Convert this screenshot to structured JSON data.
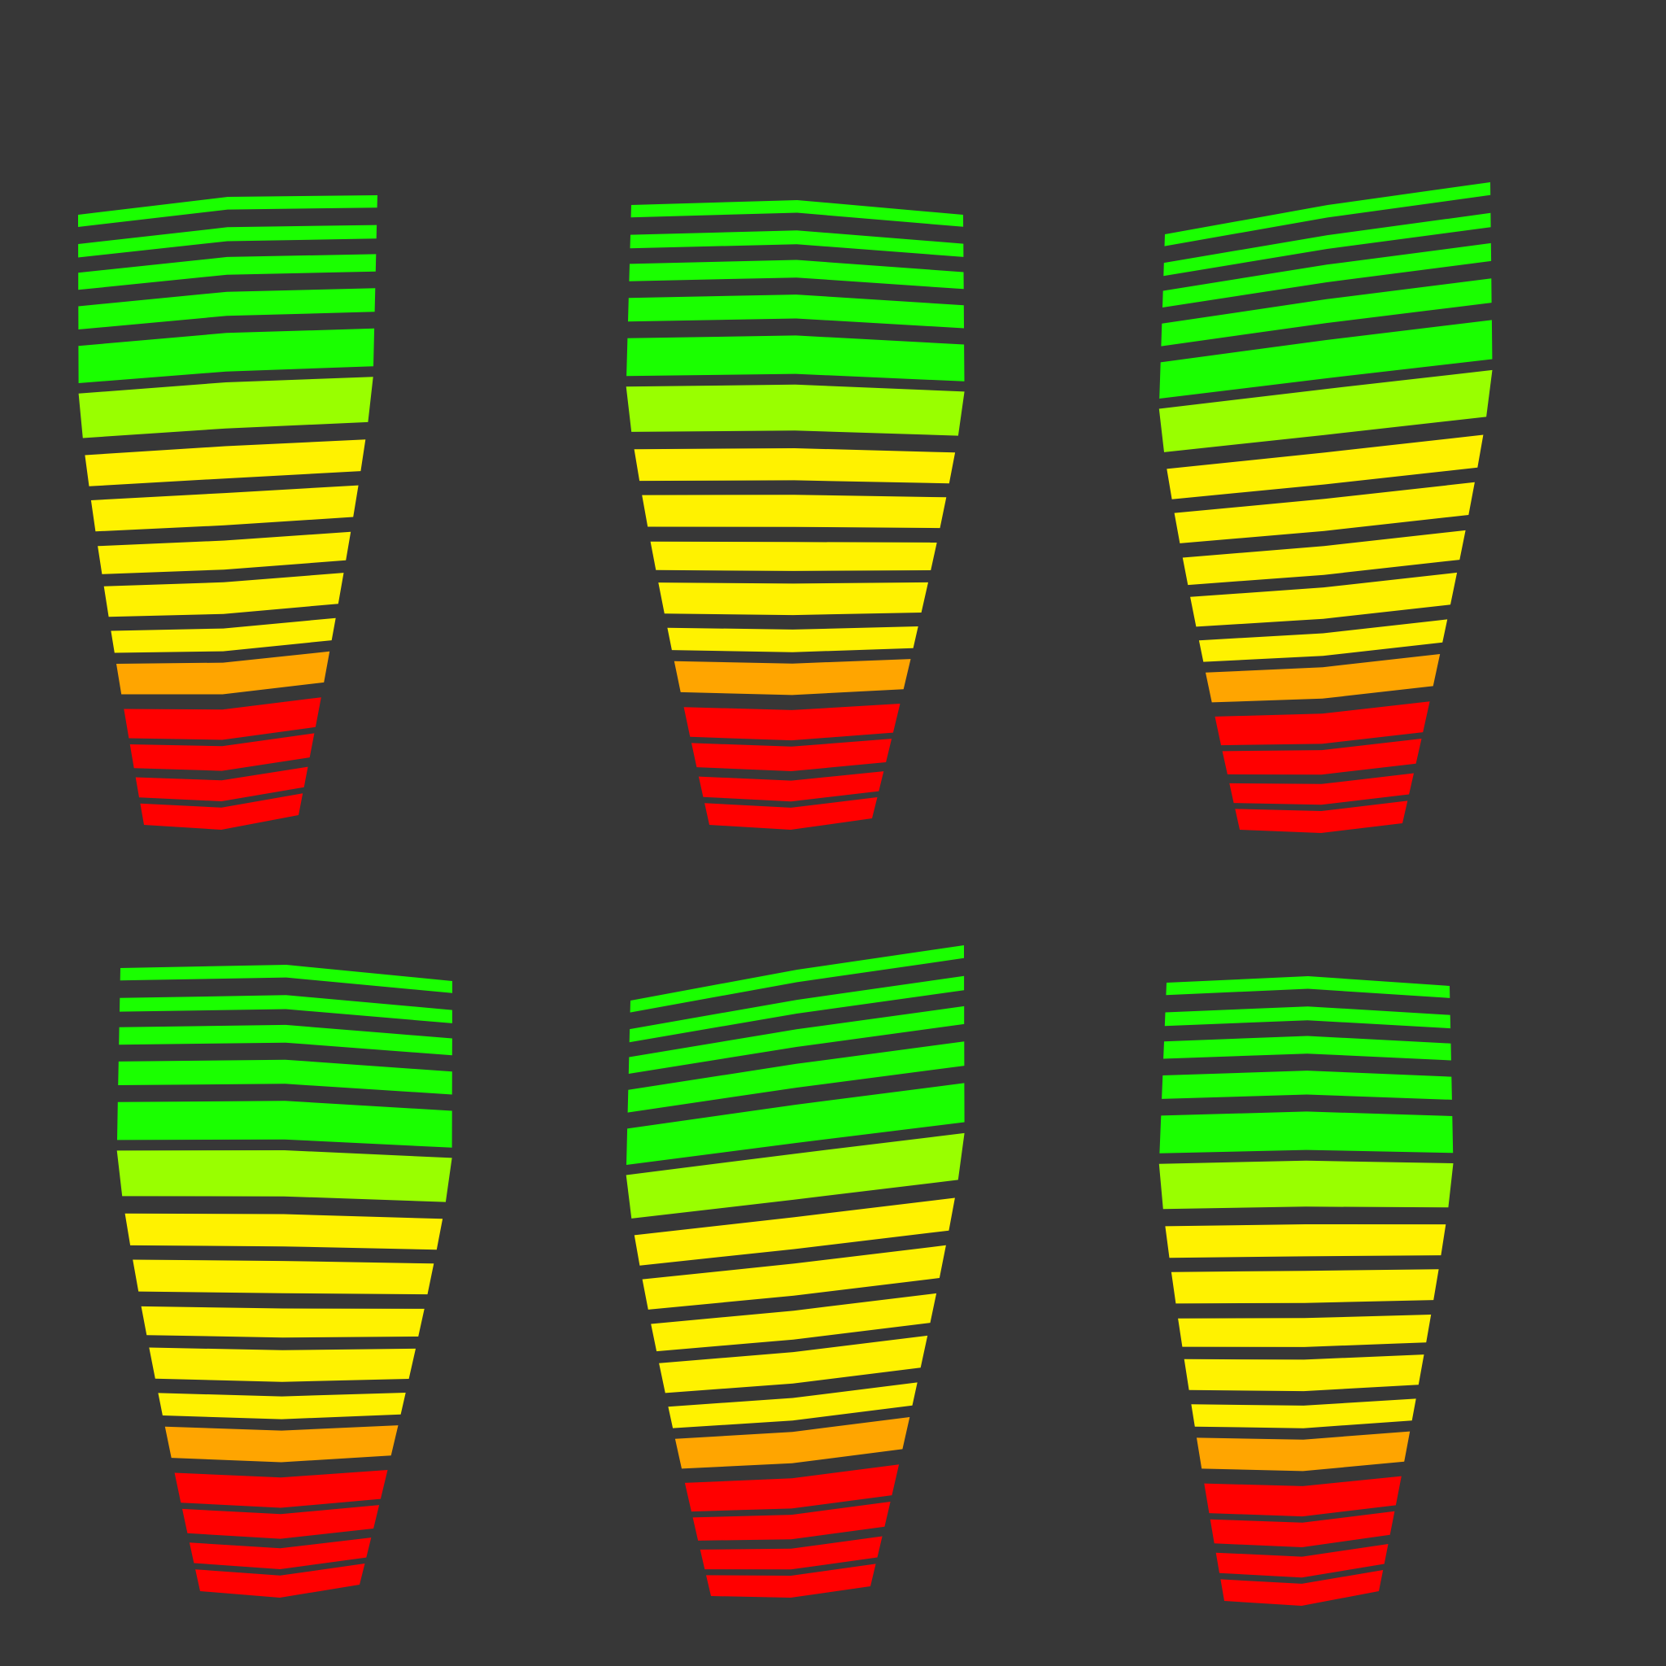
{
  "background_color": "#373737",
  "band_palette": {
    "green": "#1aff00",
    "lime": "#99ff00",
    "yellow": "#fff200",
    "orange": "#ffa500",
    "red": "#ff0000"
  },
  "band_sequence": [
    "green",
    "green",
    "green",
    "green",
    "green",
    "lime",
    "yellow",
    "yellow",
    "yellow",
    "yellow",
    "yellow",
    "orange",
    "red",
    "red",
    "red",
    "red"
  ],
  "panel_count": 6
}
